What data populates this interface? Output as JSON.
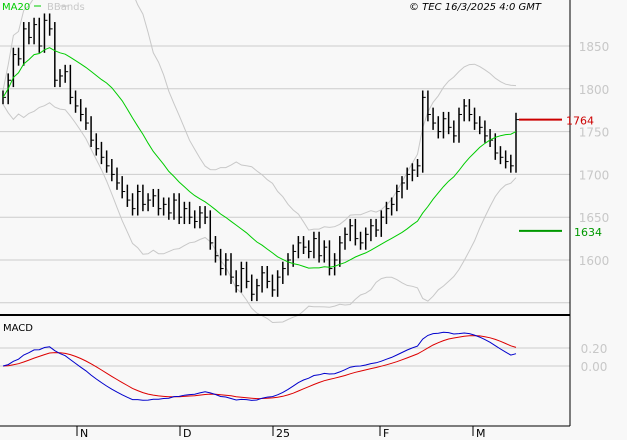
{
  "header": {
    "copyright": "© TEC 16/3/2025 4:0 GMT",
    "legend_ma": "MA20",
    "legend_bb": "BBands"
  },
  "macd_panel": {
    "title": "MACD"
  },
  "colors": {
    "bars": "#000000",
    "ma20": "#00cc00",
    "bbands": "#c8c8c8",
    "macd": "#0000cc",
    "signal": "#dd0000",
    "resistance": "#cc0000",
    "support": "#009900"
  },
  "chart_data": {
    "type": "bar",
    "price_axis": {
      "ticks": [
        1600,
        1650,
        1700,
        1750,
        1800,
        1850
      ],
      "tick_labels": [
        "1600",
        "1650",
        "1700",
        "1750",
        "1800",
        "1850"
      ],
      "range": [
        1530,
        1880
      ]
    },
    "macd_axis": {
      "ticks": [
        0.0,
        0.2
      ],
      "tick_labels": [
        "0.00",
        "0.20"
      ]
    },
    "x_labels": [
      "N",
      "D",
      "25",
      "F",
      "M"
    ],
    "levels": {
      "resistance": {
        "value": 1764,
        "label": "1764"
      },
      "support": {
        "value": 1634,
        "label": "1634"
      }
    },
    "closes": [
      1790,
      1810,
      1840,
      1835,
      1870,
      1860,
      1875,
      1850,
      1880,
      1870,
      1810,
      1815,
      1820,
      1790,
      1780,
      1770,
      1760,
      1740,
      1730,
      1720,
      1710,
      1700,
      1690,
      1680,
      1670,
      1660,
      1680,
      1665,
      1670,
      1675,
      1660,
      1665,
      1655,
      1670,
      1650,
      1660,
      1650,
      1645,
      1655,
      1650,
      1620,
      1605,
      1590,
      1600,
      1580,
      1570,
      1590,
      1575,
      1560,
      1570,
      1585,
      1575,
      1565,
      1580,
      1590,
      1600,
      1610,
      1620,
      1615,
      1610,
      1625,
      1605,
      1615,
      1590,
      1600,
      1620,
      1630,
      1640,
      1625,
      1620,
      1630,
      1640,
      1635,
      1650,
      1660,
      1665,
      1680,
      1690,
      1700,
      1705,
      1710,
      1790,
      1770,
      1760,
      1750,
      1765,
      1755,
      1745,
      1770,
      1780,
      1770,
      1760,
      1755,
      1745,
      1740,
      1725,
      1720,
      1715,
      1710,
      1764
    ]
  }
}
